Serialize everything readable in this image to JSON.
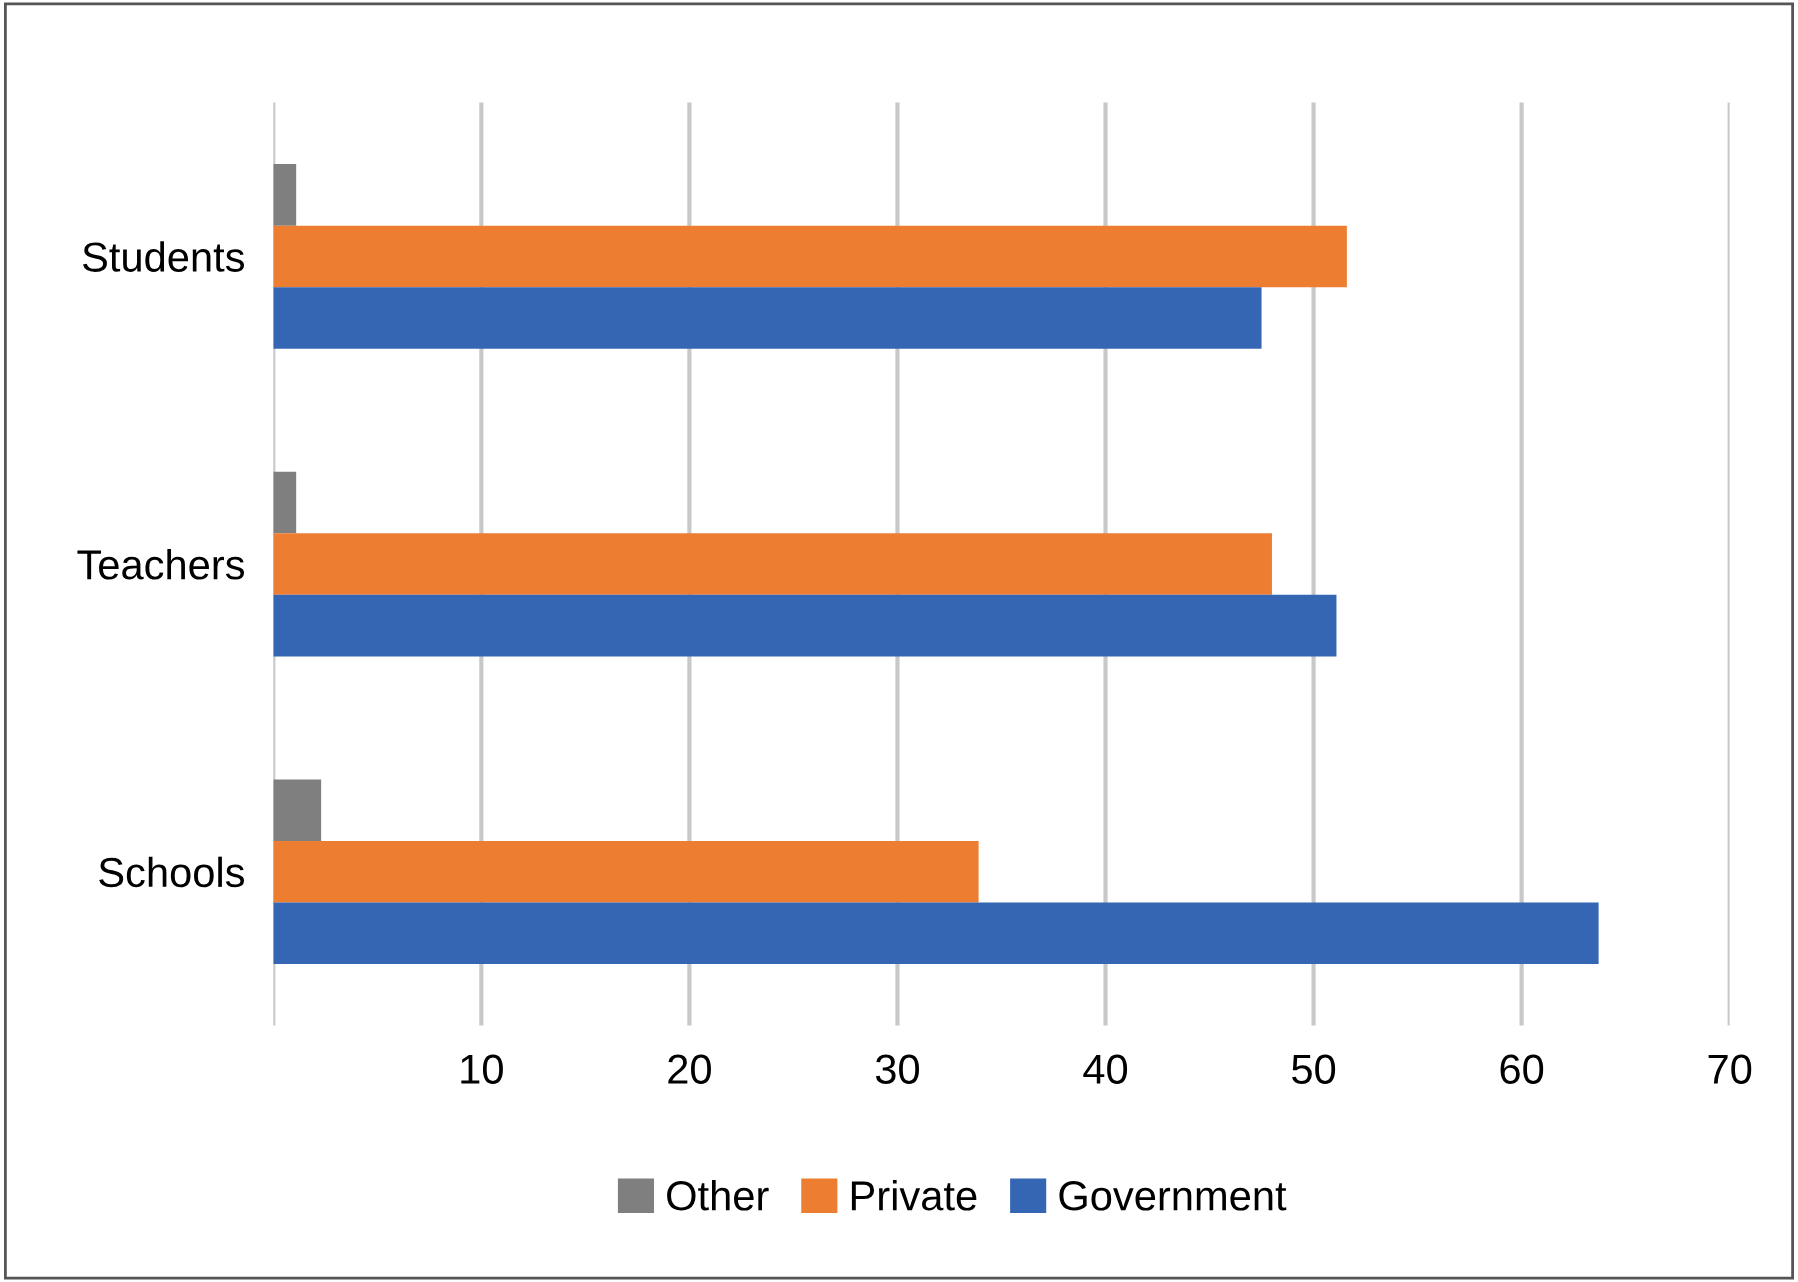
{
  "chart_data": {
    "type": "bar",
    "orientation": "horizontal",
    "categories": [
      "Students",
      "Teachers",
      "Schools"
    ],
    "series": [
      {
        "name": "Other",
        "color": "#7f7f7f",
        "values": [
          1.1,
          1.1,
          2.3
        ]
      },
      {
        "name": "Private",
        "color": "#ed7d31",
        "values": [
          51.6,
          48.0,
          33.9
        ]
      },
      {
        "name": "Government",
        "color": "#3566b4",
        "values": [
          47.5,
          51.1,
          63.7
        ]
      }
    ],
    "xlim": [
      0,
      70
    ],
    "xticks": [
      {
        "value": 0,
        "label": null
      },
      10,
      20,
      30,
      40,
      50,
      60,
      70
    ],
    "grid": "x",
    "legend": "bottom"
  }
}
